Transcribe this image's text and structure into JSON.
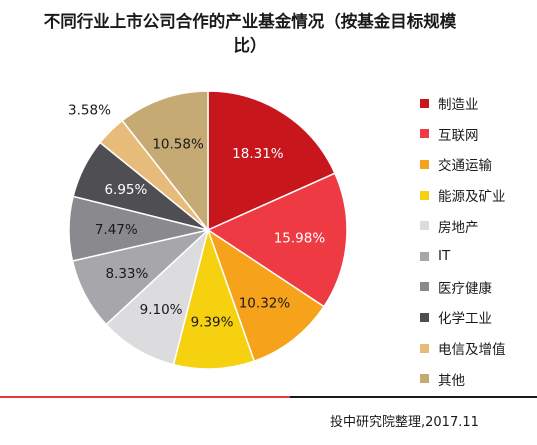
{
  "chart_data": {
    "type": "pie",
    "title_line1": "不同行业上市公司合作的产业基金情况（按基金目标规模",
    "title_line2": "比）",
    "slices": [
      {
        "name": "制造业",
        "value": 18.31,
        "label": "18.31%",
        "color": "#c8161d",
        "label_color": "#ffffff"
      },
      {
        "name": "互联网",
        "value": 15.98,
        "label": "15.98%",
        "color": "#ee3a43",
        "label_color": "#ffffff"
      },
      {
        "name": "交通运输",
        "value": 10.32,
        "label": "10.32%",
        "color": "#f7a21b",
        "label_color": "#1a1a1a"
      },
      {
        "name": "能源及矿业",
        "value": 9.39,
        "label": "9.39%",
        "color": "#f6d10f",
        "label_color": "#1a1a1a"
      },
      {
        "name": "房地产",
        "value": 9.1,
        "label": "9.10%",
        "color": "#dcdcdf",
        "label_color": "#1a1a1a"
      },
      {
        "name": "IT",
        "value": 8.33,
        "label": "8.33%",
        "color": "#a7a7ab",
        "label_color": "#1a1a1a"
      },
      {
        "name": "医疗健康",
        "value": 7.47,
        "label": "7.47%",
        "color": "#8a8a8e",
        "label_color": "#1a1a1a"
      },
      {
        "name": "化学工业",
        "value": 6.95,
        "label": "6.95%",
        "color": "#4f4f53",
        "label_color": "#ffffff"
      },
      {
        "name": "电信及增值",
        "value": 3.58,
        "label": "3.58%",
        "color": "#e7bc7a",
        "label_color": "#1a1a1a"
      },
      {
        "name": "其他",
        "value": 10.58,
        "label": "10.58%",
        "color": "#c6aa74",
        "label_color": "#1a1a1a"
      }
    ],
    "legend_position": "right"
  },
  "source": "投中研究院整理,2017.11"
}
